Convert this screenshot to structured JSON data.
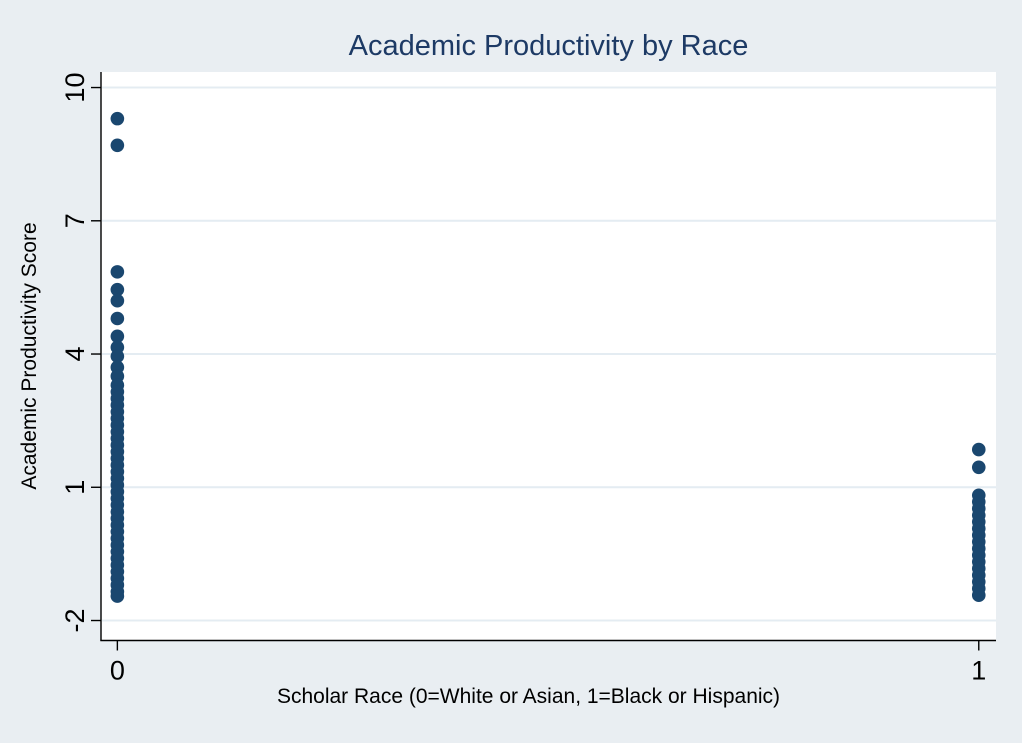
{
  "window": {
    "background_color": "#e9eef2"
  },
  "colors": {
    "marker": "#1a476f",
    "title_text": "#1d3a65",
    "axis_text": "#000000",
    "plot_background": "#ffffff",
    "outer_background": "#e9eef2",
    "gridline": "#e4ecf2",
    "axis_line": "#000000"
  },
  "chart_data": {
    "type": "scatter",
    "title": "Academic Productivity by Race",
    "xlabel": "Scholar Race (0=White or Asian, 1=Black or Hispanic)",
    "ylabel": "Academic Productivity Score",
    "xticks": [
      0,
      1
    ],
    "yticks": [
      -2,
      1,
      4,
      7,
      10
    ],
    "xlim": [
      -0.019,
      1.02
    ],
    "ylim": [
      -2.45,
      10.35
    ],
    "grid": "horizontal gridlines at y ticks",
    "legend": "none",
    "marker": {
      "shape": "circle",
      "radius_px": 6.8,
      "color": "#1a476f"
    },
    "series": [
      {
        "name": "race-0-white-or-asian",
        "x": 0,
        "y": [
          9.3,
          8.7,
          5.85,
          5.45,
          5.2,
          4.8,
          4.4,
          4.15,
          3.95,
          3.7,
          3.5,
          3.3,
          3.15,
          3.0,
          2.85,
          2.7,
          2.55,
          2.4,
          2.25,
          2.1,
          1.95,
          1.8,
          1.65,
          1.5,
          1.35,
          1.2,
          1.05,
          0.9,
          0.75,
          0.6,
          0.45,
          0.3,
          0.15,
          0.0,
          -0.15,
          -0.3,
          -0.45,
          -0.6,
          -0.75,
          -0.9,
          -1.05,
          -1.2,
          -1.35,
          -1.45
        ]
      },
      {
        "name": "race-1-black-or-hispanic",
        "x": 1,
        "y": [
          1.85,
          1.45,
          0.82,
          0.67,
          0.52,
          0.37,
          0.22,
          0.07,
          -0.08,
          -0.23,
          -0.38,
          -0.53,
          -0.68,
          -0.83,
          -0.98,
          -1.13,
          -1.28,
          -1.43
        ]
      }
    ]
  }
}
